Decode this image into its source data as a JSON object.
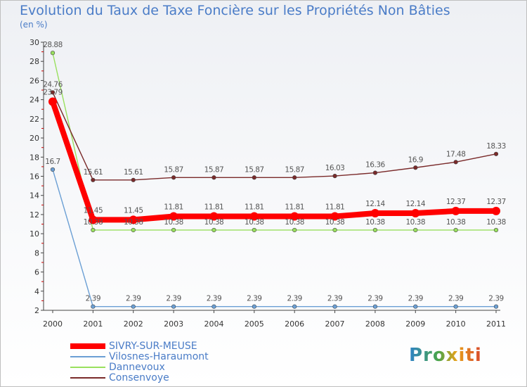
{
  "header": {
    "title": "Evolution du Taux de Taxe Foncière sur les Propriétés Non Bâties",
    "unit": "(en %)"
  },
  "logo_text": "Proxiti",
  "chart_data": {
    "type": "line",
    "x": [
      "2000",
      "2001",
      "2002",
      "2003",
      "2004",
      "2005",
      "2006",
      "2007",
      "2008",
      "2009",
      "2010",
      "2011"
    ],
    "ylim": [
      2,
      30
    ],
    "yticks": [
      2,
      4,
      6,
      8,
      10,
      12,
      14,
      16,
      18,
      20,
      22,
      24,
      26,
      28,
      30
    ],
    "grid": false,
    "legend_position": "bottom-left",
    "series": [
      {
        "name": "SIVRY-SUR-MEUSE",
        "color": "#ff0000",
        "emphasis": true,
        "values": [
          23.79,
          11.45,
          11.45,
          11.81,
          11.81,
          11.81,
          11.81,
          11.81,
          12.14,
          12.14,
          12.37,
          12.37
        ],
        "labels": [
          "23.79",
          "11.45",
          "11.45",
          "11.81",
          "11.81",
          "11.81",
          "11.81",
          "11.81",
          "12.14",
          "12.14",
          "12.37",
          "12.37"
        ]
      },
      {
        "name": "Vilosnes-Haraumont",
        "color": "#6b9fd4",
        "values": [
          16.7,
          2.39,
          2.39,
          2.39,
          2.39,
          2.39,
          2.39,
          2.39,
          2.39,
          2.39,
          2.39,
          2.39
        ],
        "labels": [
          "16.7",
          "2.39",
          "2.39",
          "2.39",
          "2.39",
          "2.39",
          "2.39",
          "2.39",
          "2.39",
          "2.39",
          "2.39",
          "2.39"
        ]
      },
      {
        "name": "Dannevoux",
        "color": "#99e05e",
        "values": [
          28.88,
          10.38,
          10.38,
          10.38,
          10.38,
          10.38,
          10.38,
          10.38,
          10.38,
          10.38,
          10.38,
          10.38
        ],
        "labels": [
          "28.88",
          "10.38",
          "10.38",
          "10.38",
          "10.38",
          "10.38",
          "10.38",
          "10.38",
          "10.38",
          "10.38",
          "10.38",
          "10.38"
        ]
      },
      {
        "name": "Consenvoye",
        "color": "#7a2a2a",
        "values": [
          24.76,
          15.61,
          15.61,
          15.87,
          15.87,
          15.87,
          15.87,
          16.03,
          16.36,
          16.9,
          17.48,
          18.33
        ],
        "labels": [
          "24.76",
          "15.61",
          "15.61",
          "15.87",
          "15.87",
          "15.87",
          "15.87",
          "16.03",
          "16.36",
          "16.9",
          "17.48",
          "18.33"
        ]
      }
    ]
  }
}
